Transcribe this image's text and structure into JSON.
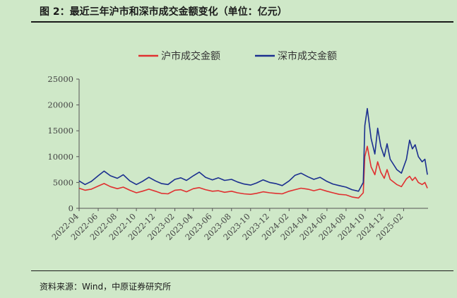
{
  "figure": {
    "title": "图 2：最近三年沪市和深市成交金额变化（单位：亿元）",
    "source": "资料来源：Wind，中原证券研究所"
  },
  "colors": {
    "sh": "#e03030",
    "sz": "#1b2f8f"
  },
  "chart_data": {
    "type": "line",
    "title": "",
    "xlabel": "",
    "ylabel": "",
    "ylim": [
      0,
      25000
    ],
    "yticks": [
      0,
      5000,
      10000,
      15000,
      20000,
      25000
    ],
    "xlim": [
      "2022-04-01",
      "2025-04-20"
    ],
    "xticks": [
      "2022-04",
      "2022-06",
      "2022-08",
      "2022-10",
      "2022-12",
      "2023-02",
      "2023-04",
      "2023-06",
      "2023-08",
      "2023-10",
      "2023-12",
      "2024-02",
      "2024-04",
      "2024-06",
      "2024-08",
      "2024-10",
      "2024-12",
      "2025-02"
    ],
    "grid": false,
    "legend_position": "top",
    "series": [
      {
        "name": "沪市成交金额",
        "color": "#e03030",
        "points": [
          [
            "2022-04-01",
            3900
          ],
          [
            "2022-04-20",
            3500
          ],
          [
            "2022-05-10",
            3700
          ],
          [
            "2022-06-01",
            4300
          ],
          [
            "2022-06-20",
            4800
          ],
          [
            "2022-07-10",
            4200
          ],
          [
            "2022-08-01",
            3800
          ],
          [
            "2022-08-20",
            4100
          ],
          [
            "2022-09-10",
            3500
          ],
          [
            "2022-10-01",
            3000
          ],
          [
            "2022-10-20",
            3300
          ],
          [
            "2022-11-10",
            3700
          ],
          [
            "2022-12-01",
            3300
          ],
          [
            "2022-12-20",
            2900
          ],
          [
            "2023-01-10",
            2800
          ],
          [
            "2023-02-01",
            3500
          ],
          [
            "2023-02-20",
            3600
          ],
          [
            "2023-03-10",
            3200
          ],
          [
            "2023-04-01",
            3800
          ],
          [
            "2023-04-20",
            4000
          ],
          [
            "2023-05-10",
            3600
          ],
          [
            "2023-06-01",
            3300
          ],
          [
            "2023-06-20",
            3400
          ],
          [
            "2023-07-10",
            3100
          ],
          [
            "2023-08-01",
            3300
          ],
          [
            "2023-08-20",
            3000
          ],
          [
            "2023-09-10",
            2800
          ],
          [
            "2023-10-01",
            2700
          ],
          [
            "2023-10-20",
            2900
          ],
          [
            "2023-11-10",
            3200
          ],
          [
            "2023-12-01",
            3000
          ],
          [
            "2023-12-20",
            2900
          ],
          [
            "2024-01-10",
            2800
          ],
          [
            "2024-02-01",
            3300
          ],
          [
            "2024-02-20",
            3600
          ],
          [
            "2024-03-10",
            3900
          ],
          [
            "2024-04-01",
            3700
          ],
          [
            "2024-04-20",
            3400
          ],
          [
            "2024-05-10",
            3700
          ],
          [
            "2024-06-01",
            3300
          ],
          [
            "2024-06-20",
            3000
          ],
          [
            "2024-07-10",
            2700
          ],
          [
            "2024-08-01",
            2600
          ],
          [
            "2024-08-20",
            2200
          ],
          [
            "2024-09-10",
            2000
          ],
          [
            "2024-09-25",
            3000
          ],
          [
            "2024-09-30",
            10000
          ],
          [
            "2024-10-08",
            12000
          ],
          [
            "2024-10-20",
            8000
          ],
          [
            "2024-11-01",
            6500
          ],
          [
            "2024-11-10",
            9000
          ],
          [
            "2024-11-20",
            7000
          ],
          [
            "2024-12-01",
            5800
          ],
          [
            "2024-12-10",
            7500
          ],
          [
            "2024-12-20",
            5600
          ],
          [
            "2025-01-10",
            4600
          ],
          [
            "2025-01-25",
            4200
          ],
          [
            "2025-02-10",
            5700
          ],
          [
            "2025-02-20",
            6200
          ],
          [
            "2025-03-01",
            5400
          ],
          [
            "2025-03-10",
            6000
          ],
          [
            "2025-03-20",
            5000
          ],
          [
            "2025-04-01",
            4600
          ],
          [
            "2025-04-10",
            5000
          ],
          [
            "2025-04-18",
            3900
          ]
        ]
      },
      {
        "name": "深市成交金额",
        "color": "#1b2f8f",
        "points": [
          [
            "2022-04-01",
            5300
          ],
          [
            "2022-04-20",
            4600
          ],
          [
            "2022-05-10",
            5200
          ],
          [
            "2022-06-01",
            6300
          ],
          [
            "2022-06-20",
            7200
          ],
          [
            "2022-07-10",
            6300
          ],
          [
            "2022-08-01",
            5800
          ],
          [
            "2022-08-20",
            6500
          ],
          [
            "2022-09-10",
            5300
          ],
          [
            "2022-10-01",
            4600
          ],
          [
            "2022-10-20",
            5200
          ],
          [
            "2022-11-10",
            6000
          ],
          [
            "2022-12-01",
            5300
          ],
          [
            "2022-12-20",
            4800
          ],
          [
            "2023-01-10",
            4600
          ],
          [
            "2023-02-01",
            5600
          ],
          [
            "2023-02-20",
            5900
          ],
          [
            "2023-03-10",
            5400
          ],
          [
            "2023-04-01",
            6300
          ],
          [
            "2023-04-20",
            7000
          ],
          [
            "2023-05-10",
            6000
          ],
          [
            "2023-06-01",
            5500
          ],
          [
            "2023-06-20",
            5900
          ],
          [
            "2023-07-10",
            5400
          ],
          [
            "2023-08-01",
            5600
          ],
          [
            "2023-08-20",
            5100
          ],
          [
            "2023-09-10",
            4700
          ],
          [
            "2023-10-01",
            4500
          ],
          [
            "2023-10-20",
            4900
          ],
          [
            "2023-11-10",
            5500
          ],
          [
            "2023-12-01",
            5000
          ],
          [
            "2023-12-20",
            4800
          ],
          [
            "2024-01-10",
            4400
          ],
          [
            "2024-02-01",
            5300
          ],
          [
            "2024-02-20",
            6400
          ],
          [
            "2024-03-10",
            6800
          ],
          [
            "2024-04-01",
            6100
          ],
          [
            "2024-04-20",
            5600
          ],
          [
            "2024-05-10",
            6000
          ],
          [
            "2024-06-01",
            5200
          ],
          [
            "2024-06-20",
            4700
          ],
          [
            "2024-07-10",
            4400
          ],
          [
            "2024-08-01",
            4100
          ],
          [
            "2024-08-20",
            3600
          ],
          [
            "2024-09-10",
            3300
          ],
          [
            "2024-09-25",
            5000
          ],
          [
            "2024-09-30",
            16000
          ],
          [
            "2024-10-08",
            19300
          ],
          [
            "2024-10-20",
            13500
          ],
          [
            "2024-11-01",
            10500
          ],
          [
            "2024-11-10",
            15500
          ],
          [
            "2024-11-20",
            12000
          ],
          [
            "2024-12-01",
            10000
          ],
          [
            "2024-12-10",
            12500
          ],
          [
            "2024-12-20",
            9500
          ],
          [
            "2025-01-10",
            7500
          ],
          [
            "2025-01-25",
            6800
          ],
          [
            "2025-02-10",
            9500
          ],
          [
            "2025-02-20",
            13200
          ],
          [
            "2025-03-01",
            11500
          ],
          [
            "2025-03-10",
            12300
          ],
          [
            "2025-03-20",
            10000
          ],
          [
            "2025-04-01",
            9000
          ],
          [
            "2025-04-10",
            9500
          ],
          [
            "2025-04-18",
            6500
          ]
        ]
      }
    ]
  }
}
